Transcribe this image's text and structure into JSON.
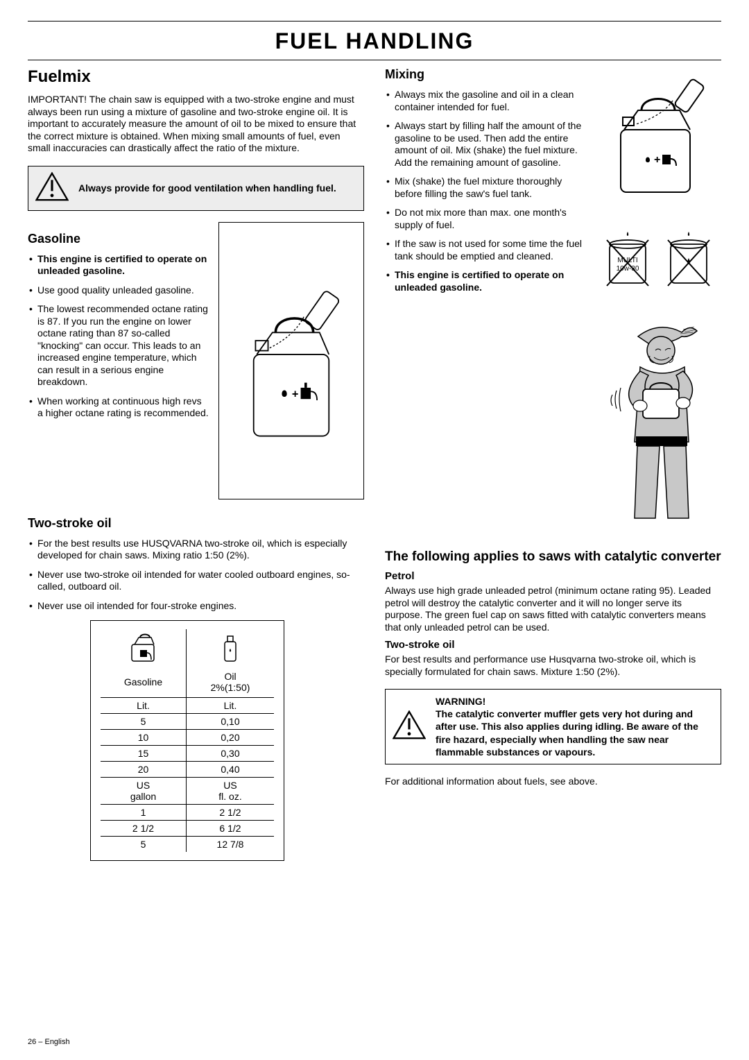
{
  "page_title": "FUEL HANDLING",
  "footer": {
    "page": "26",
    "lang": " – English"
  },
  "left": {
    "fuelmix_heading": "Fuelmix",
    "important": "IMPORTANT! The chain saw is equipped with a two-stroke engine and must always been run using a mixture of gasoline and two-stroke engine oil. It is important to accurately measure the amount of oil to be mixed to ensure that the correct mixture is obtained. When mixing small amounts of fuel, even small inaccuracies can drastically affect the ratio of the mixture.",
    "ventilation_warning": "Always provide for good ventilation when handling fuel.",
    "gasoline_heading": "Gasoline",
    "gasoline_bullets": [
      {
        "text": "This engine is certified to operate on unleaded gasoline.",
        "bold": true
      },
      {
        "text": "Use good quality unleaded gasoline."
      },
      {
        "text": "The lowest recommended octane rating is 87. If you run the engine on lower octane rating than 87 so-called \"knocking\" can occur. This leads to an increased engine temperature, which can result in a serious engine breakdown."
      },
      {
        "text": "When working at continuous high revs a higher octane rating is recommended."
      }
    ],
    "twostroke_heading": "Two-stroke oil",
    "twostroke_bullets": [
      "For the best results use HUSQVARNA two-stroke oil, which is especially developed for chain saws. Mixing ratio 1:50 (2%).",
      "Never use two-stroke oil intended for water cooled outboard engines, so-called, outboard oil.",
      "Never use oil intended for four-stroke engines."
    ],
    "table": {
      "col1_name": "Gasoline",
      "col2_name": "Oil",
      "col2_sub": "2%(1:50)",
      "rows": [
        [
          "Lit.",
          "Lit."
        ],
        [
          "5",
          "0,10"
        ],
        [
          "10",
          "0,20"
        ],
        [
          "15",
          "0,30"
        ],
        [
          "20",
          "0,40"
        ],
        [
          "US\ngallon",
          "US\nfl. oz."
        ],
        [
          "1",
          "2 1/2"
        ],
        [
          "2 1/2",
          "6 1/2"
        ],
        [
          "5",
          "12 7/8"
        ]
      ]
    }
  },
  "right": {
    "mixing_heading": "Mixing",
    "mixing_bullets": [
      {
        "text": "Always mix the gasoline and oil in a clean container intended for fuel."
      },
      {
        "text": "Always start by filling half the amount of the gasoline to be used. Then add the entire amount of oil. Mix (shake) the fuel mixture. Add the remaining amount of gasoline."
      },
      {
        "text": "Mix (shake) the fuel mixture thoroughly before filling the saw's fuel tank."
      },
      {
        "text": "Do not mix more than max. one month's supply of fuel."
      },
      {
        "text": "If the saw is not used for some time the fuel tank should be emptied and cleaned."
      },
      {
        "text": "This engine is certified to operate on unleaded gasoline.",
        "bold": true
      }
    ],
    "catalytic_heading": "The following applies to saws with catalytic converter",
    "petrol_heading": "Petrol",
    "petrol_body": "Always use high grade unleaded petrol (minimum octane rating 95). Leaded petrol will destroy the catalytic converter and it will no longer serve its purpose. The green fuel cap on saws fitted with catalytic converters means that only unleaded petrol can be used.",
    "twostroke_heading": "Two-stroke oil",
    "twostroke_body": "For best results and performance use Husqvarna two-stroke oil, which is specially formulated for chain saws. Mixture 1:50 (2%).",
    "warning_label": "WARNING!",
    "warning_body": "The catalytic converter muffler gets very hot during and after use. This also applies during idling. Be aware of the fire hazard, especially when handling the saw near flammable substances or vapours.",
    "footnote": "For additional information about fuels, see above."
  }
}
